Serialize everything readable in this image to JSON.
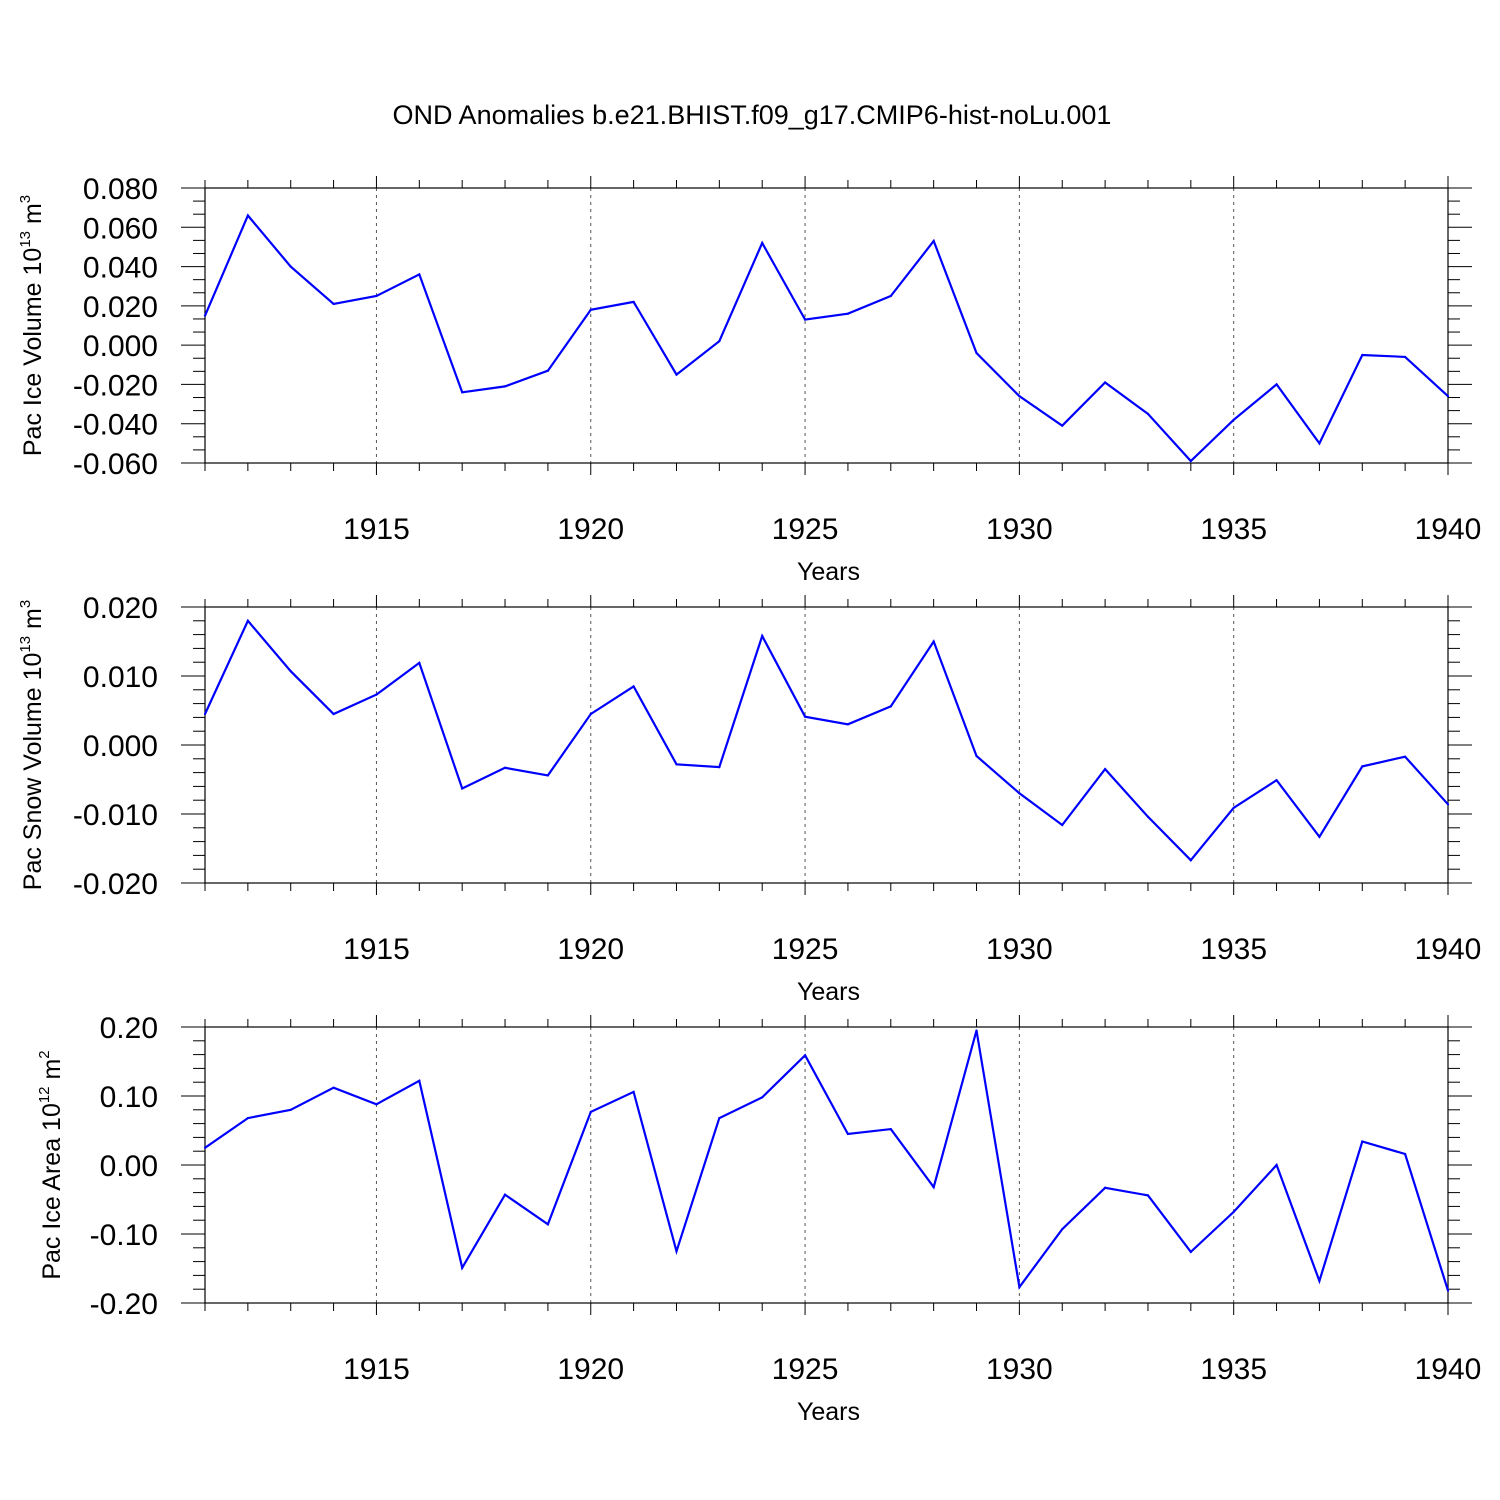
{
  "title": "OND Anomalies b.e21.BHIST.f09_g17.CMIP6-hist-noLu.001",
  "series_color": "#0000ff",
  "chart_data": [
    {
      "type": "line",
      "title": "",
      "xlabel": "Years",
      "ylabel_main": "Pac Ice Volume 10",
      "ylabel_sup": "13",
      "ylabel_unit": " m",
      "ylabel_unit_sup": "3",
      "xlim": [
        1911,
        1940
      ],
      "ylim": [
        -0.06,
        0.08
      ],
      "yticks": [
        "0.080",
        "0.060",
        "0.040",
        "0.020",
        "0.000",
        "-0.020",
        "-0.040",
        "-0.060"
      ],
      "ytick_values": [
        0.08,
        0.06,
        0.04,
        0.02,
        0.0,
        -0.02,
        -0.04,
        -0.06
      ],
      "xticks": [
        "1915",
        "1920",
        "1925",
        "1930",
        "1935",
        "1940"
      ],
      "xtick_values": [
        1915,
        1920,
        1925,
        1930,
        1935,
        1940
      ],
      "grid": "dashed vertical at major x ticks",
      "x": [
        1911,
        1912,
        1913,
        1914,
        1915,
        1916,
        1917,
        1918,
        1919,
        1920,
        1921,
        1922,
        1923,
        1924,
        1925,
        1926,
        1927,
        1928,
        1929,
        1930,
        1931,
        1932,
        1933,
        1934,
        1935,
        1936,
        1937,
        1938,
        1939,
        1940
      ],
      "values": [
        0.015,
        0.066,
        0.04,
        0.021,
        0.025,
        0.036,
        -0.024,
        -0.021,
        -0.013,
        0.018,
        0.022,
        -0.015,
        0.002,
        0.052,
        0.013,
        0.016,
        0.025,
        0.053,
        -0.004,
        -0.026,
        -0.041,
        -0.019,
        -0.035,
        -0.059,
        -0.038,
        -0.02,
        -0.05,
        -0.005,
        -0.006,
        -0.026
      ]
    },
    {
      "type": "line",
      "title": "",
      "xlabel": "Years",
      "ylabel_main": "Pac Snow Volume 10",
      "ylabel_sup": "13",
      "ylabel_unit": " m",
      "ylabel_unit_sup": "3",
      "xlim": [
        1911,
        1940
      ],
      "ylim": [
        -0.02,
        0.02
      ],
      "yticks": [
        "0.020",
        "0.010",
        "0.000",
        "-0.010",
        "-0.020"
      ],
      "ytick_values": [
        0.02,
        0.01,
        0.0,
        -0.01,
        -0.02
      ],
      "xticks": [
        "1915",
        "1920",
        "1925",
        "1930",
        "1935",
        "1940"
      ],
      "xtick_values": [
        1915,
        1920,
        1925,
        1930,
        1935,
        1940
      ],
      "grid": "dashed vertical at major x ticks",
      "x": [
        1911,
        1912,
        1913,
        1914,
        1915,
        1916,
        1917,
        1918,
        1919,
        1920,
        1921,
        1922,
        1923,
        1924,
        1925,
        1926,
        1927,
        1928,
        1929,
        1930,
        1931,
        1932,
        1933,
        1934,
        1935,
        1936,
        1937,
        1938,
        1939,
        1940
      ],
      "values": [
        0.0045,
        0.018,
        0.0107,
        0.0045,
        0.0073,
        0.0119,
        -0.0063,
        -0.0033,
        -0.0044,
        0.0045,
        0.0085,
        -0.0028,
        -0.0032,
        0.0158,
        0.0041,
        0.003,
        0.0056,
        0.015,
        -0.0016,
        -0.007,
        -0.0116,
        -0.0035,
        -0.0104,
        -0.0167,
        -0.0091,
        -0.0051,
        -0.0133,
        -0.0031,
        -0.0017,
        -0.0086
      ]
    },
    {
      "type": "line",
      "title": "",
      "xlabel": "Years",
      "ylabel_main": "Pac Ice Area 10",
      "ylabel_sup": "12",
      "ylabel_unit": " m",
      "ylabel_unit_sup": "2",
      "xlim": [
        1911,
        1940
      ],
      "ylim": [
        -0.2,
        0.2
      ],
      "yticks": [
        "0.20",
        "0.10",
        "0.00",
        "-0.10",
        "-0.20"
      ],
      "ytick_values": [
        0.2,
        0.1,
        0.0,
        -0.1,
        -0.2
      ],
      "xticks": [
        "1915",
        "1920",
        "1925",
        "1930",
        "1935",
        "1940"
      ],
      "xtick_values": [
        1915,
        1920,
        1925,
        1930,
        1935,
        1940
      ],
      "grid": "dashed vertical at major x ticks",
      "x": [
        1911,
        1912,
        1913,
        1914,
        1915,
        1916,
        1917,
        1918,
        1919,
        1920,
        1921,
        1922,
        1923,
        1924,
        1925,
        1926,
        1927,
        1928,
        1929,
        1930,
        1931,
        1932,
        1933,
        1934,
        1935,
        1936,
        1937,
        1938,
        1939,
        1940
      ],
      "values": [
        0.025,
        0.068,
        0.08,
        0.112,
        0.088,
        0.122,
        -0.149,
        -0.043,
        -0.086,
        0.077,
        0.106,
        -0.125,
        0.068,
        0.098,
        0.159,
        0.045,
        0.052,
        -0.032,
        0.195,
        -0.177,
        -0.093,
        -0.033,
        -0.044,
        -0.126,
        -0.068,
        0.0,
        -0.168,
        0.034,
        0.016,
        -0.182
      ]
    }
  ]
}
